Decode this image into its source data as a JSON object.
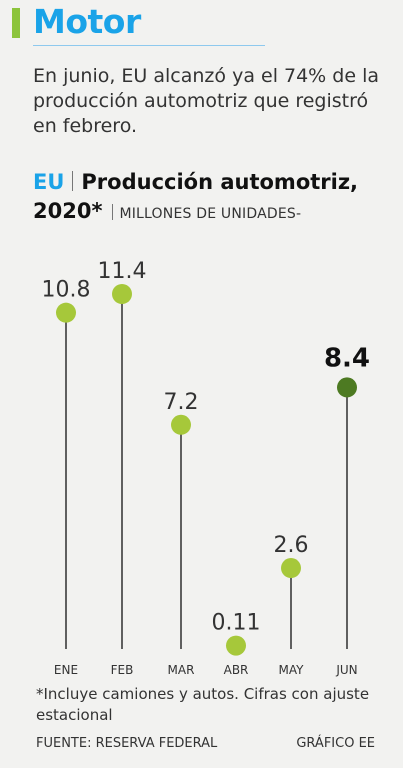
{
  "section": {
    "title": "Motor"
  },
  "intro_text": "En junio, EU alcanzó ya el 74% de la producción automotriz que registró en febrero.",
  "chart_header": {
    "country": "EU",
    "title": "Producción automotriz,",
    "year": "2020*",
    "units": "MILLONES DE UNIDADES-"
  },
  "chart_data": {
    "type": "lollipop",
    "categories": [
      "ENE",
      "FEB",
      "MAR",
      "ABR",
      "MAY",
      "JUN"
    ],
    "values": [
      10.8,
      11.4,
      7.2,
      0.11,
      2.6,
      8.4
    ],
    "value_labels": [
      "10.8",
      "11.4",
      "7.2",
      "0.11",
      "2.6",
      "8.4"
    ],
    "highlight_index": 5,
    "ylim": [
      0,
      11.4
    ],
    "colors": {
      "dot": "#a6c83a",
      "highlight_dot": "#4d7a22",
      "stem": "#222222"
    }
  },
  "footnote": "*Incluye camiones y autos. Cifras con ajuste estacional",
  "source": "FUENTE: RESERVA FEDERAL",
  "credit": "GRÁFICO EE"
}
